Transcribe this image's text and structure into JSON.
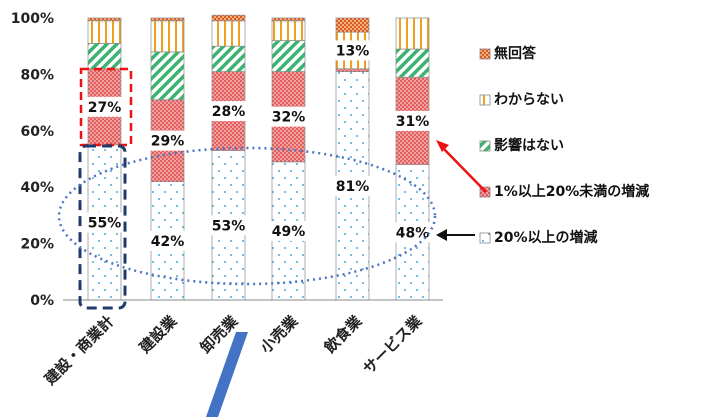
{
  "chart_data": {
    "type": "bar",
    "stacked": true,
    "categories": [
      "建設・商業計",
      "建設業",
      "卸売業",
      "小売業",
      "飲食業",
      "サービス業"
    ],
    "yticks": [
      "0%",
      "20%",
      "40%",
      "60%",
      "80%",
      "100%"
    ],
    "ylim": [
      0,
      100
    ],
    "legend_position": "right",
    "series": [
      {
        "name": "20%以上の増減",
        "values": [
          55,
          42,
          53,
          49,
          81,
          48
        ],
        "color": "#9ad3e6"
      },
      {
        "name": "1%以上20%未満の増減",
        "values": [
          27,
          29,
          28,
          32,
          1,
          31
        ],
        "color": "#e85a5a"
      },
      {
        "name": "影響はない",
        "values": [
          9,
          17,
          9,
          11,
          0,
          10
        ],
        "color": "#3cb371"
      },
      {
        "name": "わからない",
        "values": [
          8,
          11,
          9,
          7,
          13,
          11
        ],
        "color": "#f0a020"
      },
      {
        "name": "無回答",
        "values": [
          1,
          1,
          2,
          1,
          5,
          0
        ],
        "color": "#e06a2a"
      }
    ],
    "data_labels": [
      {
        "category": 0,
        "series": 0,
        "text": "55%"
      },
      {
        "category": 1,
        "series": 0,
        "text": "42%"
      },
      {
        "category": 2,
        "series": 0,
        "text": "53%"
      },
      {
        "category": 3,
        "series": 0,
        "text": "49%"
      },
      {
        "category": 4,
        "series": 0,
        "text": "81%"
      },
      {
        "category": 5,
        "series": 0,
        "text": "48%"
      },
      {
        "category": 0,
        "series": 1,
        "text": "27%"
      },
      {
        "category": 1,
        "series": 1,
        "text": "29%"
      },
      {
        "category": 2,
        "series": 1,
        "text": "28%"
      },
      {
        "category": 3,
        "series": 1,
        "text": "32%"
      },
      {
        "category": 4,
        "series": 3,
        "text": "13%"
      },
      {
        "category": 5,
        "series": 1,
        "text": "31%"
      }
    ],
    "legend_order": [
      4,
      3,
      2,
      1,
      0
    ]
  }
}
